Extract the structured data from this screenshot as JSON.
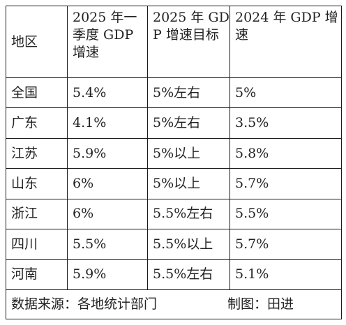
{
  "table": {
    "headers": [
      "地区",
      "2025 年一季度 GDP 增速",
      "2025 年 GDP 增速目标",
      "2024 年 GDP 增速"
    ],
    "rows": [
      [
        "全国",
        "5.4%",
        "5%左右",
        "5%"
      ],
      [
        "广东",
        "4.1%",
        "5%左右",
        "3.5%"
      ],
      [
        "江苏",
        "5.9%",
        "5%以上",
        "5.8%"
      ],
      [
        "山东",
        "6%",
        "5%以上",
        "5.7%"
      ],
      [
        "浙江",
        "6%",
        "5.5%左右",
        "5.5%"
      ],
      [
        "四川",
        "5.5%",
        "5.5%以上",
        "5.7%"
      ],
      [
        "河南",
        "5.9%",
        "5.5%左右",
        "5.1%"
      ]
    ]
  },
  "footer": {
    "source": "数据来源：各地统计部门",
    "credit": "制图：田进"
  }
}
